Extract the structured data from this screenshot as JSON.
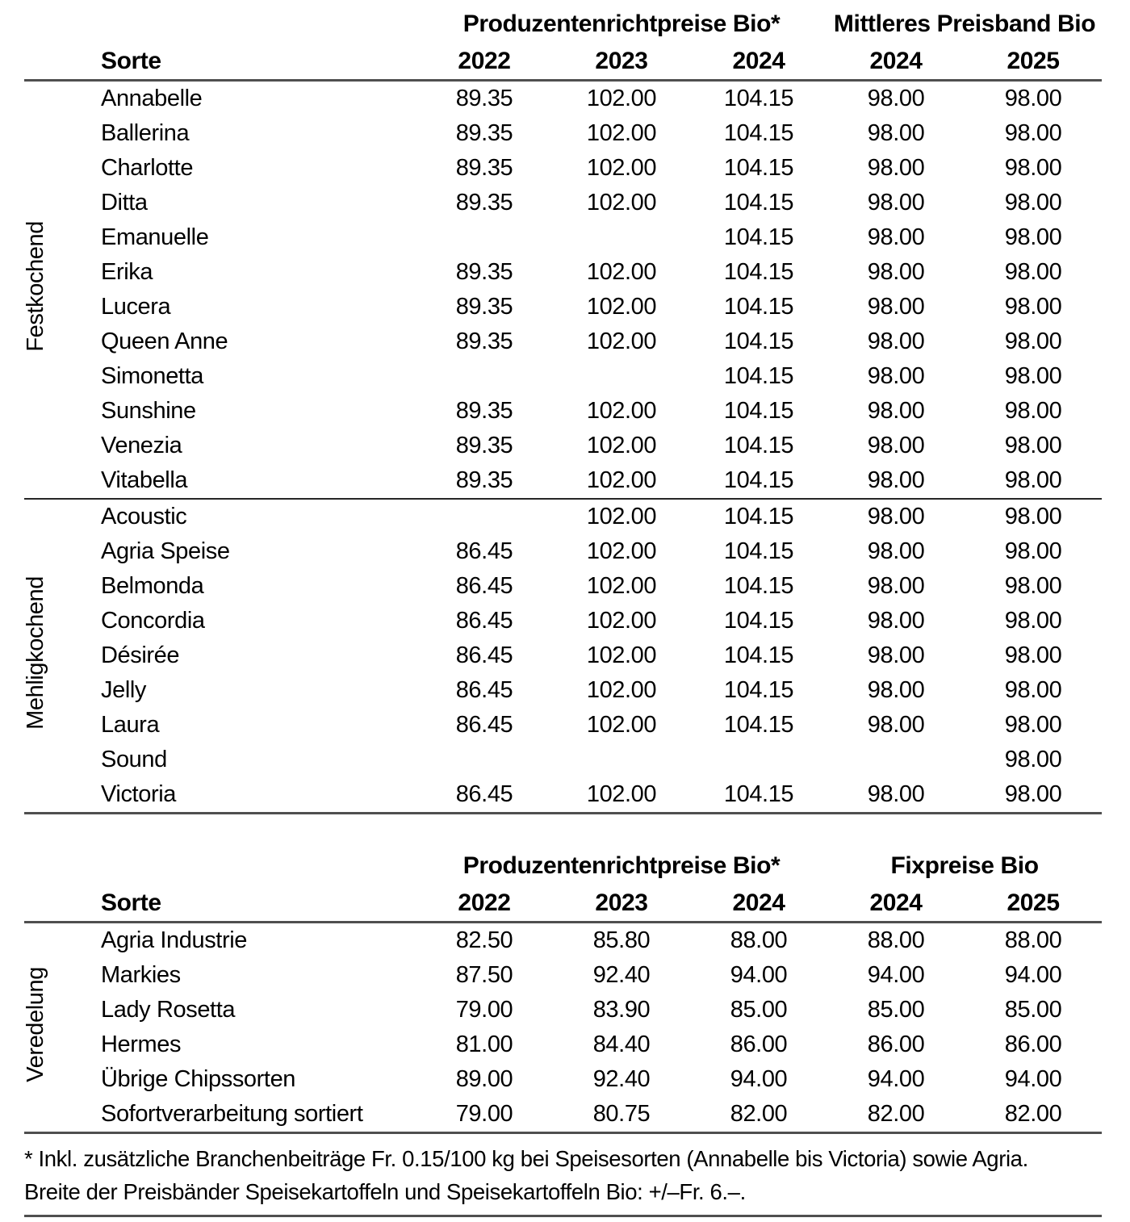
{
  "tables": [
    {
      "name": "speisekartoffeln-bio",
      "group_headers": [
        {
          "label": "Produzentenrichtpreise Bio*",
          "colspan": 3
        },
        {
          "label": "Mittleres Preisband Bio",
          "colspan": 2
        }
      ],
      "sorte_label": "Sorte",
      "year_headers": [
        "2022",
        "2023",
        "2024",
        "2024",
        "2025"
      ],
      "sections": [
        {
          "label": "Festkochend",
          "rows": [
            {
              "sorte": "Annabelle",
              "values": [
                "89.35",
                "102.00",
                "104.15",
                "98.00",
                "98.00"
              ]
            },
            {
              "sorte": "Ballerina",
              "values": [
                "89.35",
                "102.00",
                "104.15",
                "98.00",
                "98.00"
              ]
            },
            {
              "sorte": "Charlotte",
              "values": [
                "89.35",
                "102.00",
                "104.15",
                "98.00",
                "98.00"
              ]
            },
            {
              "sorte": "Ditta",
              "values": [
                "89.35",
                "102.00",
                "104.15",
                "98.00",
                "98.00"
              ]
            },
            {
              "sorte": "Emanuelle",
              "values": [
                "",
                "",
                "104.15",
                "98.00",
                "98.00"
              ]
            },
            {
              "sorte": "Erika",
              "values": [
                "89.35",
                "102.00",
                "104.15",
                "98.00",
                "98.00"
              ]
            },
            {
              "sorte": "Lucera",
              "values": [
                "89.35",
                "102.00",
                "104.15",
                "98.00",
                "98.00"
              ]
            },
            {
              "sorte": "Queen Anne",
              "values": [
                "89.35",
                "102.00",
                "104.15",
                "98.00",
                "98.00"
              ]
            },
            {
              "sorte": "Simonetta",
              "values": [
                "",
                "",
                "104.15",
                "98.00",
                "98.00"
              ]
            },
            {
              "sorte": "Sunshine",
              "values": [
                "89.35",
                "102.00",
                "104.15",
                "98.00",
                "98.00"
              ]
            },
            {
              "sorte": "Venezia",
              "values": [
                "89.35",
                "102.00",
                "104.15",
                "98.00",
                "98.00"
              ]
            },
            {
              "sorte": "Vitabella",
              "values": [
                "89.35",
                "102.00",
                "104.15",
                "98.00",
                "98.00"
              ]
            }
          ]
        },
        {
          "label": "Mehligkochend",
          "rows": [
            {
              "sorte": "Acoustic",
              "values": [
                "",
                "102.00",
                "104.15",
                "98.00",
                "98.00"
              ]
            },
            {
              "sorte": "Agria Speise",
              "values": [
                "86.45",
                "102.00",
                "104.15",
                "98.00",
                "98.00"
              ]
            },
            {
              "sorte": "Belmonda",
              "values": [
                "86.45",
                "102.00",
                "104.15",
                "98.00",
                "98.00"
              ]
            },
            {
              "sorte": "Concordia",
              "values": [
                "86.45",
                "102.00",
                "104.15",
                "98.00",
                "98.00"
              ]
            },
            {
              "sorte": "Désirée",
              "values": [
                "86.45",
                "102.00",
                "104.15",
                "98.00",
                "98.00"
              ]
            },
            {
              "sorte": "Jelly",
              "values": [
                "86.45",
                "102.00",
                "104.15",
                "98.00",
                "98.00"
              ]
            },
            {
              "sorte": "Laura",
              "values": [
                "86.45",
                "102.00",
                "104.15",
                "98.00",
                "98.00"
              ]
            },
            {
              "sorte": "Sound",
              "values": [
                "",
                "",
                "",
                "",
                "98.00"
              ]
            },
            {
              "sorte": "Victoria",
              "values": [
                "86.45",
                "102.00",
                "104.15",
                "98.00",
                "98.00"
              ]
            }
          ]
        }
      ]
    },
    {
      "name": "veredelung-bio",
      "group_headers": [
        {
          "label": "Produzentenrichtpreise Bio*",
          "colspan": 3
        },
        {
          "label": "Fixpreise Bio",
          "colspan": 2
        }
      ],
      "sorte_label": "Sorte",
      "year_headers": [
        "2022",
        "2023",
        "2024",
        "2024",
        "2025"
      ],
      "sections": [
        {
          "label": "Veredelung",
          "rows": [
            {
              "sorte": "Agria Industrie",
              "values": [
                "82.50",
                "85.80",
                "88.00",
                "88.00",
                "88.00"
              ]
            },
            {
              "sorte": "Markies",
              "values": [
                "87.50",
                "92.40",
                "94.00",
                "94.00",
                "94.00"
              ]
            },
            {
              "sorte": "Lady Rosetta",
              "values": [
                "79.00",
                "83.90",
                "85.00",
                "85.00",
                "85.00"
              ]
            },
            {
              "sorte": "Hermes",
              "values": [
                "81.00",
                "84.40",
                "86.00",
                "86.00",
                "86.00"
              ]
            },
            {
              "sorte": "Übrige Chipssorten",
              "values": [
                "89.00",
                "92.40",
                "94.00",
                "94.00",
                "94.00"
              ]
            },
            {
              "sorte": "Sofortverarbeitung sortiert",
              "values": [
                "79.00",
                "80.75",
                "82.00",
                "82.00",
                "82.00"
              ]
            }
          ]
        }
      ]
    }
  ],
  "footnote": {
    "line1": "* Inkl. zusätzliche Branchenbeiträge Fr. 0.15/100 kg bei Speisesorten (Annabelle bis Victoria) sowie Agria.",
    "line2": "Breite der Preisbänder Speisekartoffeln und Speisekartoffeln Bio: +/–Fr. 6.–."
  }
}
